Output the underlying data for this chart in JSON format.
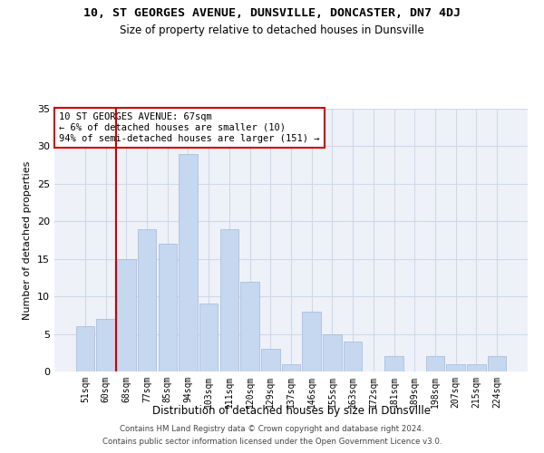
{
  "title": "10, ST GEORGES AVENUE, DUNSVILLE, DONCASTER, DN7 4DJ",
  "subtitle": "Size of property relative to detached houses in Dunsville",
  "xlabel": "Distribution of detached houses by size in Dunsville",
  "ylabel": "Number of detached properties",
  "bar_labels": [
    "51sqm",
    "60sqm",
    "68sqm",
    "77sqm",
    "85sqm",
    "94sqm",
    "103sqm",
    "111sqm",
    "120sqm",
    "129sqm",
    "137sqm",
    "146sqm",
    "155sqm",
    "163sqm",
    "172sqm",
    "181sqm",
    "189sqm",
    "198sqm",
    "207sqm",
    "215sqm",
    "224sqm"
  ],
  "bar_values": [
    6,
    7,
    15,
    19,
    17,
    29,
    9,
    19,
    12,
    3,
    1,
    8,
    5,
    4,
    0,
    2,
    0,
    2,
    1,
    1,
    2
  ],
  "bar_color": "#c5d8f0",
  "bar_edge_color": "#a0b8d8",
  "grid_color": "#d0d8e8",
  "background_color": "#eef2f8",
  "vline_x_index": 1,
  "vline_color": "#cc0000",
  "annotation_text": "10 ST GEORGES AVENUE: 67sqm\n← 6% of detached houses are smaller (10)\n94% of semi-detached houses are larger (151) →",
  "annotation_box_color": "#ffffff",
  "annotation_box_edge_color": "#cc0000",
  "ylim": [
    0,
    35
  ],
  "yticks": [
    0,
    5,
    10,
    15,
    20,
    25,
    30,
    35
  ],
  "footer_line1": "Contains HM Land Registry data © Crown copyright and database right 2024.",
  "footer_line2": "Contains public sector information licensed under the Open Government Licence v3.0."
}
